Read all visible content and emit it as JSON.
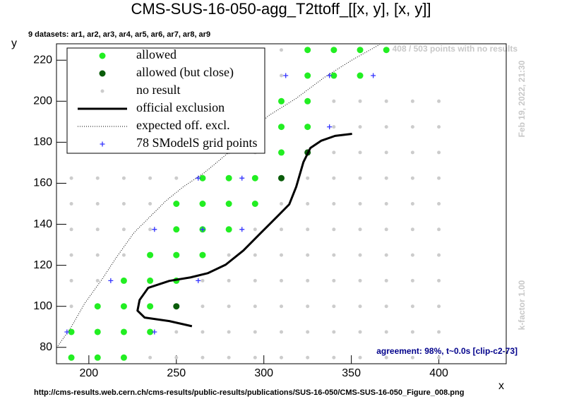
{
  "chart_data": {
    "type": "scatter",
    "title": "CMS-SUS-16-050-agg_T2ttoff_[[x, y], [x, y]]",
    "subtitle": "9 datasets: ar1, ar2, ar3, ar4, ar5, ar6, ar7, ar8, ar9",
    "x_label": "x",
    "y_label": "y",
    "annotations": {
      "no_results": "408 / 503 points with no results",
      "timestamp": "Feb 19, 2022, 21:30",
      "kfactor": "k-factor 1.00",
      "agreement": "agreement: 98%, t~0.0s [clip-c2-73]",
      "source": "http://cms-results.web.cern.ch/cms-results/public-results/publications/SUS-16-050/CMS-SUS-16-050_Figure_008.png"
    },
    "xlim": [
      181.5,
      438.5
    ],
    "ylim": [
      72,
      228
    ],
    "xticks": [
      200,
      250,
      300,
      350,
      400
    ],
    "yticks": [
      80,
      100,
      120,
      140,
      160,
      180,
      200,
      220
    ],
    "legend": "top-left",
    "series": [
      {
        "name": "allowed",
        "color": "#22ee22",
        "marker": "circle",
        "x": [
          190,
          205,
          220,
          190,
          205,
          220,
          235,
          205,
          220,
          235,
          220,
          235,
          250,
          235,
          250,
          265,
          250,
          265,
          280,
          250,
          265,
          280,
          295,
          265,
          280,
          295,
          310,
          310,
          325,
          310,
          325,
          325,
          340,
          355,
          325,
          340,
          355,
          370
        ],
        "y": [
          75,
          75,
          75,
          87.5,
          87.5,
          87.5,
          87.5,
          100,
          100,
          100,
          112.5,
          112.5,
          112.5,
          125,
          125,
          125,
          137.5,
          137.5,
          137.5,
          150,
          150,
          150,
          150,
          162.5,
          162.5,
          162.5,
          175,
          187.5,
          187.5,
          200,
          200,
          212.5,
          212.5,
          212.5,
          225,
          225,
          225,
          225
        ]
      },
      {
        "name": "allowed (but close)",
        "color": "#0a5c0a",
        "marker": "circle",
        "x": [
          250,
          310,
          325
        ],
        "y": [
          100,
          162.5,
          175
        ]
      },
      {
        "name": "no result",
        "color": "#cccccc",
        "marker": "dot",
        "x": [
          235,
          250,
          265,
          280,
          295,
          310,
          325,
          340,
          355,
          370,
          385,
          400,
          250,
          265,
          280,
          295,
          310,
          325,
          340,
          355,
          370,
          385,
          400,
          190,
          265,
          280,
          295,
          310,
          325,
          340,
          355,
          370,
          385,
          400,
          190,
          205,
          265,
          280,
          295,
          310,
          325,
          340,
          355,
          370,
          385,
          400,
          190,
          205,
          220,
          280,
          295,
          310,
          325,
          340,
          355,
          370,
          385,
          400,
          190,
          205,
          220,
          235,
          295,
          310,
          325,
          340,
          355,
          370,
          385,
          400,
          190,
          205,
          220,
          235,
          310,
          325,
          340,
          355,
          370,
          385,
          400,
          190,
          205,
          220,
          235,
          250,
          325,
          340,
          355,
          370,
          385,
          400,
          280,
          295,
          340,
          355,
          370,
          385,
          400,
          340,
          355,
          370,
          385,
          400,
          340,
          355,
          370,
          385,
          400,
          310,
          310
        ],
        "y": [
          75,
          75,
          75,
          75,
          75,
          75,
          75,
          75,
          75,
          75,
          75,
          75,
          87.5,
          87.5,
          87.5,
          87.5,
          87.5,
          87.5,
          87.5,
          87.5,
          87.5,
          87.5,
          87.5,
          100,
          100,
          100,
          100,
          100,
          100,
          100,
          100,
          100,
          100,
          100,
          112.5,
          112.5,
          112.5,
          112.5,
          112.5,
          112.5,
          112.5,
          112.5,
          112.5,
          112.5,
          112.5,
          112.5,
          125,
          125,
          125,
          125,
          125,
          125,
          125,
          125,
          125,
          125,
          125,
          125,
          137.5,
          137.5,
          137.5,
          137.5,
          137.5,
          137.5,
          137.5,
          137.5,
          137.5,
          137.5,
          137.5,
          137.5,
          150,
          150,
          150,
          150,
          150,
          150,
          150,
          150,
          150,
          150,
          150,
          162.5,
          162.5,
          162.5,
          162.5,
          162.5,
          162.5,
          162.5,
          162.5,
          162.5,
          162.5,
          162.5,
          175,
          175,
          175,
          175,
          175,
          175,
          175,
          187.5,
          187.5,
          187.5,
          187.5,
          187.5,
          200,
          200,
          200,
          200,
          200,
          212.5,
          225
        ]
      },
      {
        "name": "official exclusion",
        "color": "#000000",
        "marker": "line",
        "x": [
          258.9,
          246.0,
          231.9,
          227.8,
          229.0,
          233.9,
          246.0,
          258.1,
          268.1,
          278.2,
          288.3,
          298.4,
          308.5,
          314.5,
          318.5,
          322.6,
          326.6,
          332.7,
          340.7,
          350.4
        ],
        "y": [
          90.3,
          92.8,
          94.5,
          97.9,
          103.1,
          109.0,
          112.4,
          114.1,
          116.2,
          120.3,
          127.2,
          135.9,
          144.5,
          149.7,
          158.3,
          170.3,
          177.2,
          180.7,
          183.1,
          184.1
        ]
      },
      {
        "name": "expected off. excl.",
        "color": "#000000",
        "marker": "dotted",
        "x": [
          182.3,
          189.5,
          197.6,
          207.7,
          215.7,
          225.8,
          235.9,
          244.0,
          254.0,
          266.1,
          278.2,
          290.3,
          302.4,
          318.5,
          334.7,
          350.8,
          366.1
        ],
        "y": [
          80.7,
          89.3,
          101.4,
          113.4,
          123.8,
          135.9,
          144.5,
          151.4,
          158.3,
          165.2,
          173.8,
          182.4,
          192.8,
          201.4,
          211.7,
          220.3,
          227.6
        ]
      },
      {
        "name": "78 SModelS grid points",
        "color": "#3333ff",
        "marker": "cross",
        "x": [
          187.5,
          237.5,
          212.5,
          262.5,
          237.5,
          265,
          287.5,
          262.5,
          287.5,
          312.5,
          337.5,
          362.5,
          337.5
        ],
        "y": [
          87.5,
          87.5,
          112.5,
          112.5,
          137.5,
          137.5,
          137.5,
          162.5,
          162.5,
          212.5,
          212.5,
          212.5,
          187.5
        ]
      }
    ]
  }
}
